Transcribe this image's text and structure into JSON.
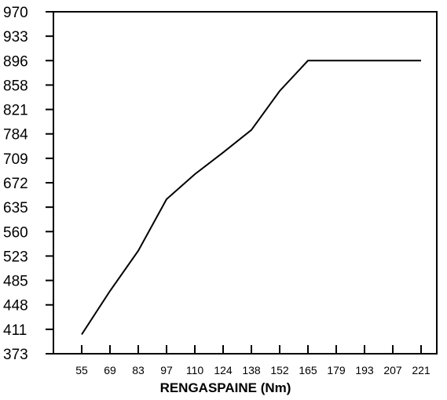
{
  "chart_data": {
    "type": "line",
    "title": "",
    "xlabel": "RENGASPAINE (Nm)",
    "ylabel": "",
    "x_ticks": [
      "55",
      "69",
      "83",
      "97",
      "110",
      "124",
      "138",
      "152",
      "165",
      "179",
      "193",
      "207",
      "221"
    ],
    "y_ticks": [
      "373",
      "411",
      "448",
      "485",
      "523",
      "560",
      "635",
      "672",
      "709",
      "784",
      "821",
      "858",
      "896",
      "933",
      "970"
    ],
    "series": [
      {
        "x": [
          55,
          69,
          83,
          97,
          110,
          124,
          138,
          152,
          165,
          179,
          193,
          207,
          221
        ],
        "y": [
          403,
          469,
          531,
          647,
          685,
          727,
          790,
          849,
          896,
          896,
          896,
          896,
          896
        ]
      }
    ],
    "grid": false,
    "line_color": "#000000"
  }
}
